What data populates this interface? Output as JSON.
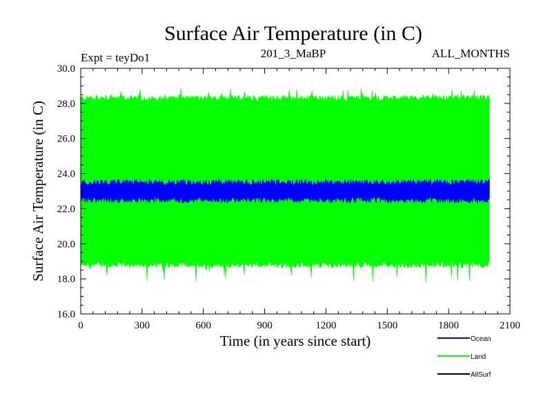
{
  "chart_data": {
    "type": "area",
    "title": "Surface Air Temperature (in C)",
    "subtitle_left": "Expt = teyDo1",
    "subtitle_center": "201_3_MaBP",
    "subtitle_right": "ALL_MONTHS",
    "xlabel": "Time (in years since start)",
    "ylabel": "Surface Air Temperature (in C)",
    "xlim": [
      0,
      2100
    ],
    "ylim": [
      16.0,
      30.0
    ],
    "x_ticks": [
      0,
      300,
      600,
      900,
      1200,
      1500,
      1800,
      2100
    ],
    "x_tick_labels": [
      "0",
      "300",
      "600",
      "900",
      "1200",
      "1500",
      "1800",
      "2100"
    ],
    "y_ticks": [
      16.0,
      18.0,
      20.0,
      22.0,
      24.0,
      26.0,
      28.0,
      30.0
    ],
    "y_tick_labels": [
      "16.0",
      "18.0",
      "20.0",
      "22.0",
      "24.0",
      "26.0",
      "28.0",
      "30.0"
    ],
    "legend_position": "bottom-right",
    "series": [
      {
        "name": "Land",
        "color": "#00ff00",
        "x_range": [
          0,
          2000
        ],
        "typical_min": 18.8,
        "typical_max": 28.3,
        "extreme_min": 17.8,
        "extreme_max": 28.9
      },
      {
        "name": "Ocean",
        "color": "#0000ff",
        "x_range": [
          0,
          2000
        ],
        "typical_min": 22.5,
        "typical_max": 23.5,
        "extreme_min": 22.3,
        "extreme_max": 23.7
      },
      {
        "name": "AllSurf",
        "color": "#000000",
        "x_range": [
          0,
          2000
        ],
        "typical_min": null,
        "typical_max": null
      }
    ],
    "legend_order": [
      "Ocean",
      "Land",
      "AllSurf"
    ]
  }
}
